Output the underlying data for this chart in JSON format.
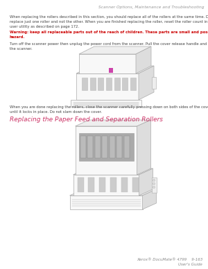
{
  "bg_color": "#ffffff",
  "header_text": "Scanner Options, Maintenance and Troubleshooting",
  "header_color": "#999999",
  "header_fontsize": 4.2,
  "body_text_1": "When replacing the rollers described in this section, you should replace all of the rollers at the same time. Do not\nreplace just one roller and not the other. When you are finished replacing the roller, reset the roller count in the\nuser utility as described on page 172.",
  "body_text_1_color": "#444444",
  "body_text_1_fontsize": 3.8,
  "warning_bold": "Warning:",
  "warning_rest": " keep all replaceable parts out of the reach of children. These parts are small and pose a choking\nhazard.",
  "warning_color": "#cc0000",
  "warning_fontsize": 3.8,
  "body_text_2": "Turn off the scanner power then unplug the power cord from the scanner. Pull the cover release handle and open\nthe scanner.",
  "body_text_2_color": "#444444",
  "body_text_2_fontsize": 3.8,
  "body_text_3": "When you are done replacing the rollers, close the scanner carefully pressing down on both sides of the cover\nuntil it locks in place. Do not slam down the cover.",
  "body_text_3_color": "#444444",
  "body_text_3_fontsize": 3.8,
  "section_title": "Replacing the Paper Feed and Separation Rollers",
  "section_title_color": "#cc3366",
  "section_title_fontsize": 6.5,
  "footer_line1": "Xerox® DocuMate® 4799    9-163",
  "footer_line2": "User's Guide",
  "footer_color": "#888888",
  "footer_fontsize": 4.0,
  "edge_color": "#aaaaaa",
  "fill_light": "#f8f8f8",
  "fill_mid": "#eeeeee",
  "fill_dark": "#dddddd",
  "fill_darker": "#cccccc",
  "accent_magenta": "#cc44aa"
}
